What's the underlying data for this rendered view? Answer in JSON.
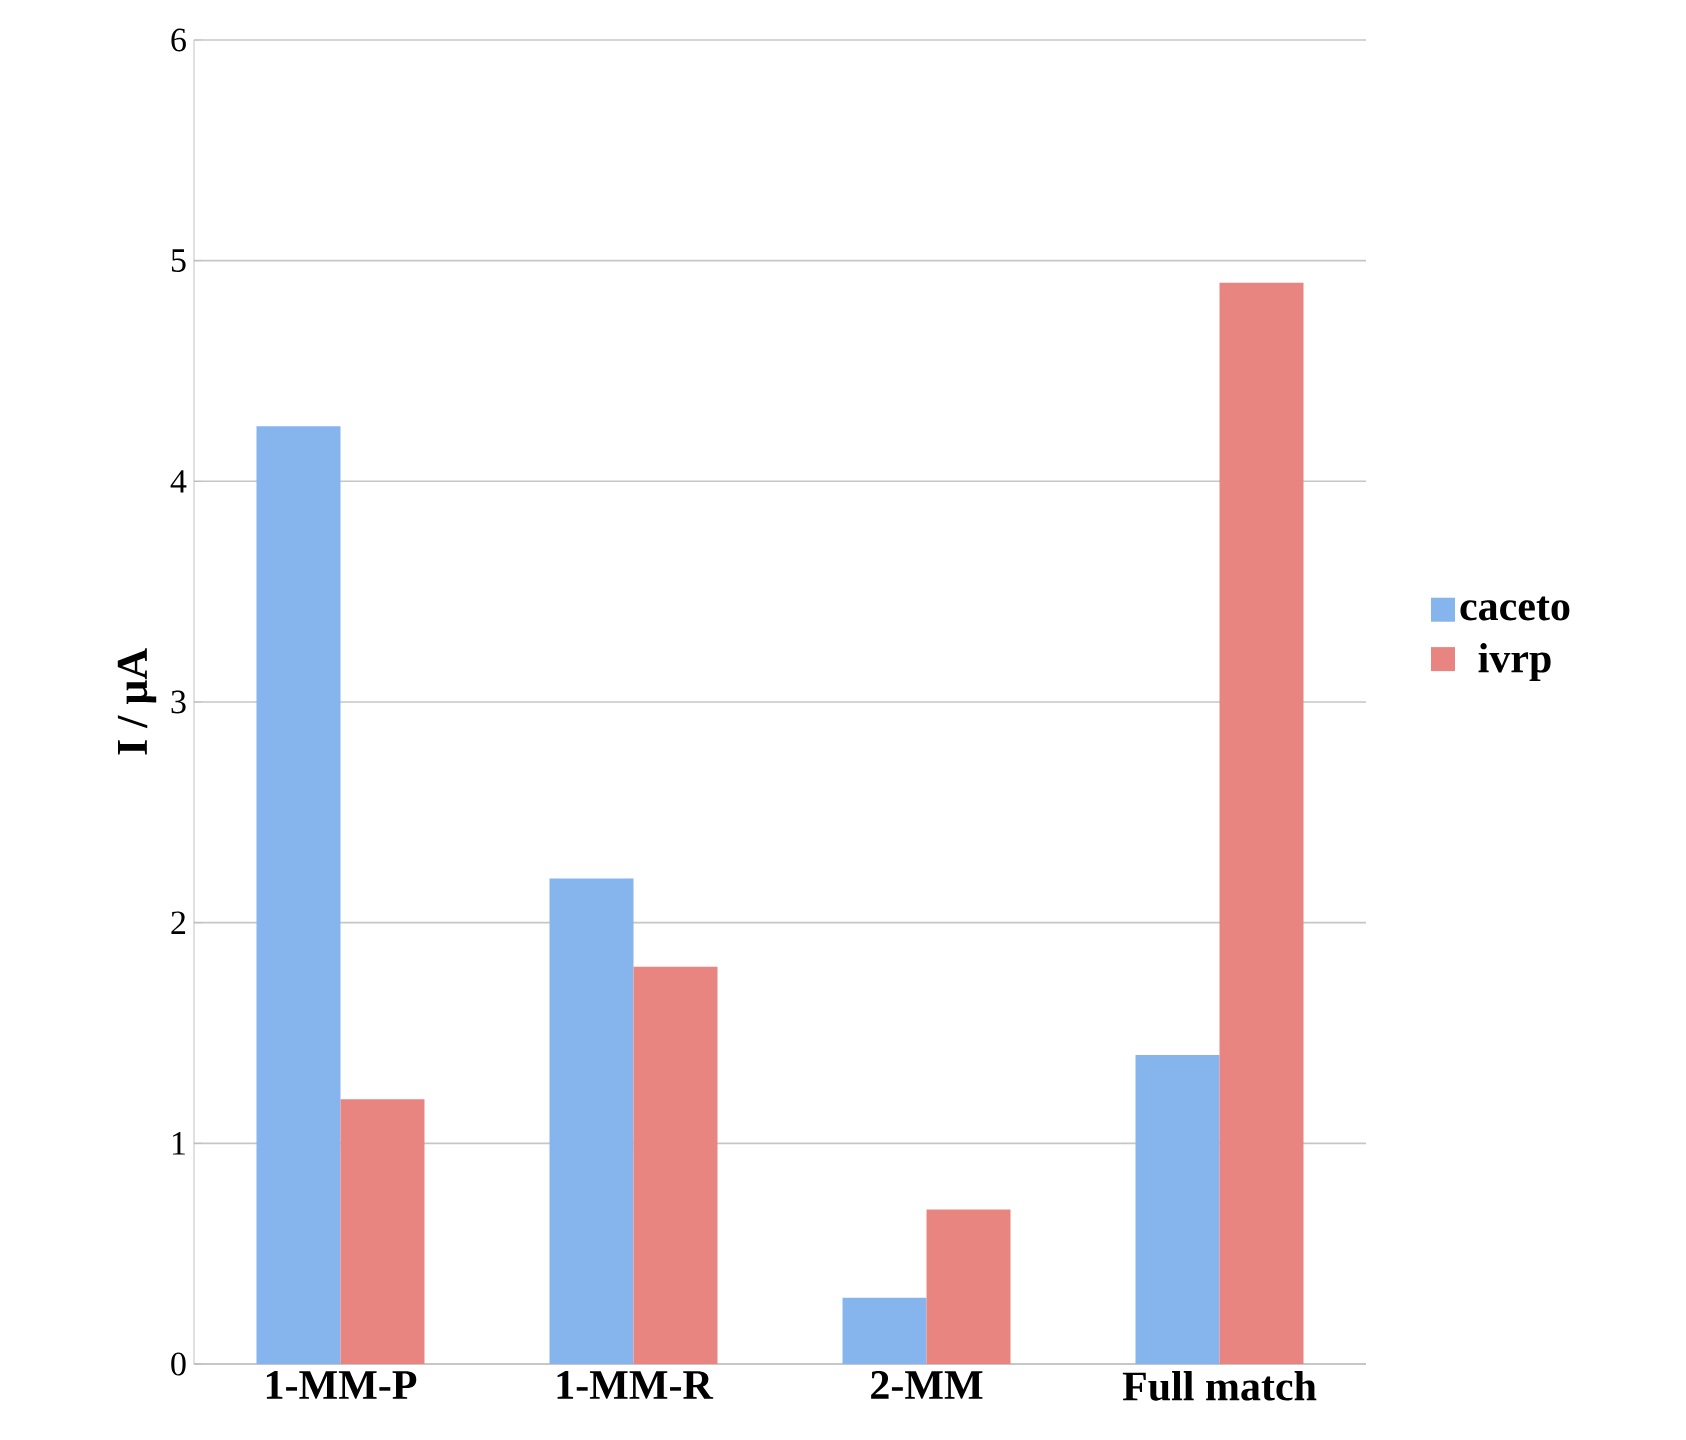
{
  "chart_data": {
    "type": "bar",
    "ylabel": "I / μA",
    "categories": [
      "1-MM-P",
      "1-MM-R",
      "2-MM",
      "Full match"
    ],
    "series": [
      {
        "name": "caceto",
        "color": "#86b4ec",
        "values": [
          4.25,
          2.2,
          0.3,
          1.4
        ]
      },
      {
        "name": "ivrp",
        "color": "#e98580",
        "values": [
          1.2,
          1.8,
          0.7,
          4.9
        ]
      }
    ],
    "ylim": [
      0,
      6
    ],
    "yticks": [
      0,
      1,
      2,
      3,
      4,
      5,
      6
    ],
    "grid": "y",
    "legend": "right"
  }
}
